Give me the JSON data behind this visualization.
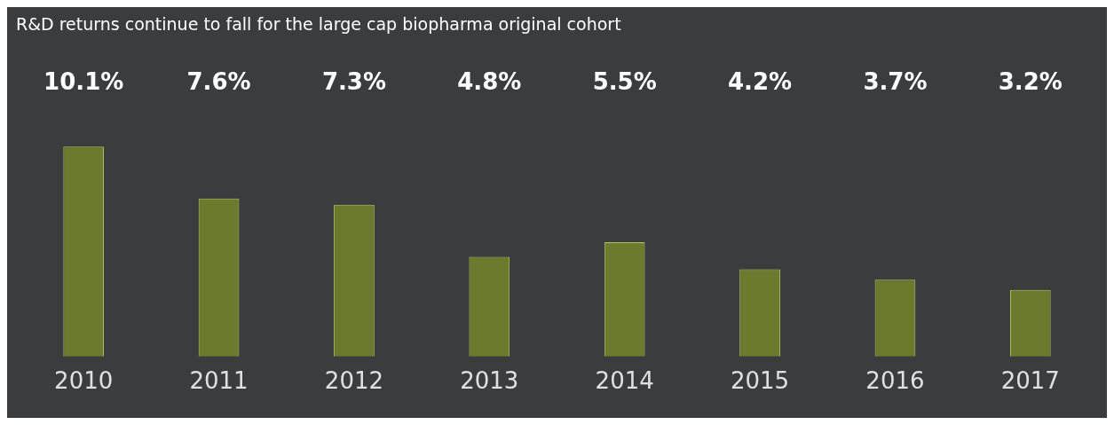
{
  "chart_data": {
    "type": "bar",
    "title": "R&D returns continue to fall for the large cap biopharma original cohort",
    "categories": [
      "2010",
      "2011",
      "2012",
      "2013",
      "2014",
      "2015",
      "2016",
      "2017"
    ],
    "values": [
      10.1,
      7.6,
      7.3,
      4.8,
      5.5,
      4.2,
      3.7,
      3.2
    ],
    "value_labels": [
      "10.1%",
      "7.6%",
      "7.3%",
      "4.8%",
      "5.5%",
      "4.2%",
      "3.7%",
      "3.2%"
    ],
    "color": "#6b7a2c",
    "grid": false,
    "legend": false
  }
}
